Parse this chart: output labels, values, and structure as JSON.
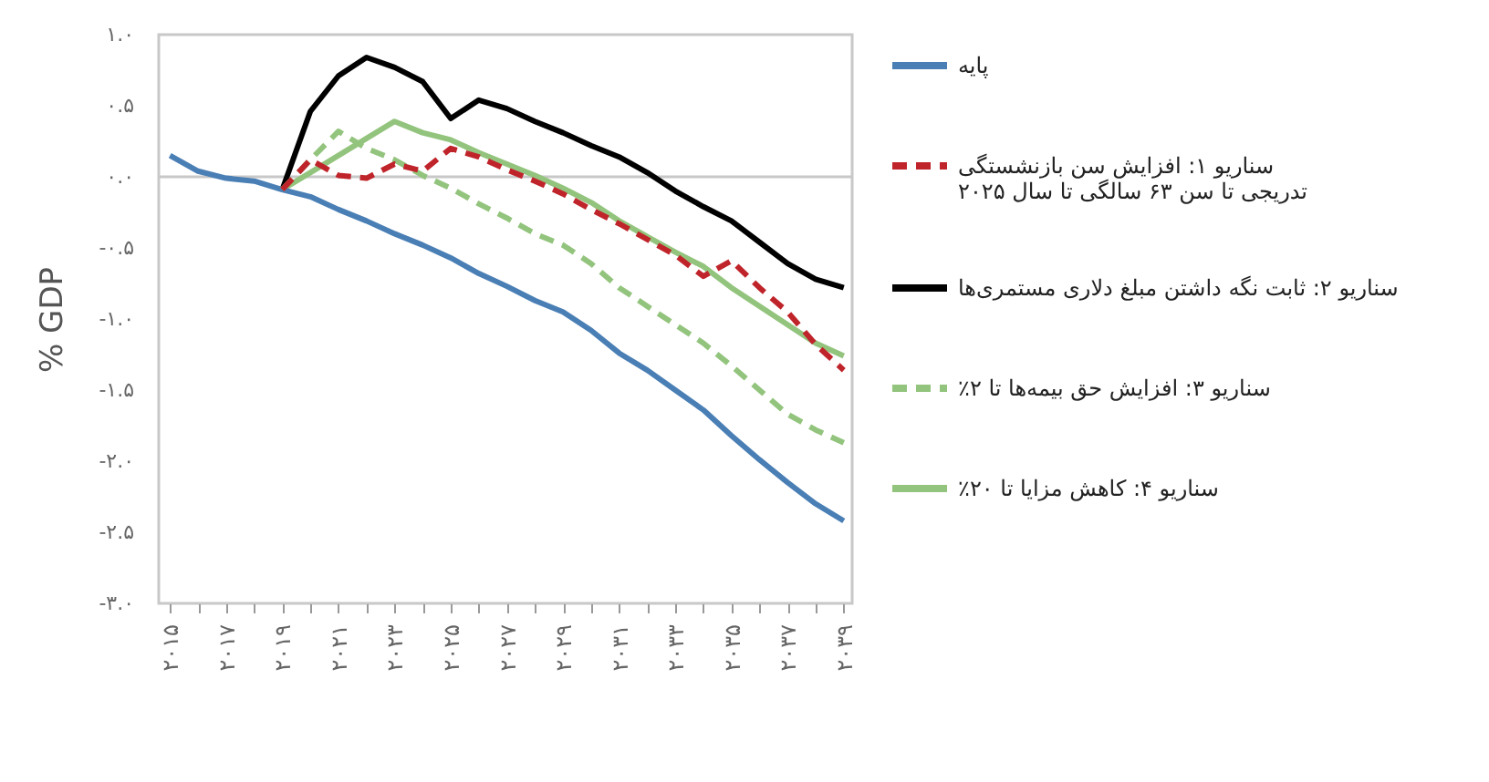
{
  "chart_data": {
    "type": "line",
    "ylabel": "% GDP",
    "legend": "right",
    "grid": false,
    "line_style": "solid",
    "marker": "none",
    "x": [
      2015,
      2016,
      2017,
      2018,
      2019,
      2020,
      2021,
      2022,
      2023,
      2024,
      2025,
      2026,
      2027,
      2028,
      2029,
      2030,
      2031,
      2032,
      2033,
      2034,
      2035,
      2036,
      2037,
      2038,
      2039
    ],
    "xlim": [
      2014.6,
      2039.3
    ],
    "xticks": [
      {
        "value": 2015,
        "label": "۲۰۱۵"
      },
      {
        "value": 2016,
        "label": null
      },
      {
        "value": 2017,
        "label": "۲۰۱۷"
      },
      {
        "value": 2018,
        "label": null
      },
      {
        "value": 2019,
        "label": "۲۰۱۹"
      },
      {
        "value": 2020,
        "label": null
      },
      {
        "value": 2021,
        "label": "۲۰۲۱"
      },
      {
        "value": 2022,
        "label": null
      },
      {
        "value": 2023,
        "label": "۲۰۲۳"
      },
      {
        "value": 2024,
        "label": null
      },
      {
        "value": 2025,
        "label": "۲۰۲۵"
      },
      {
        "value": 2026,
        "label": null
      },
      {
        "value": 2027,
        "label": "۲۰۲۷"
      },
      {
        "value": 2028,
        "label": null
      },
      {
        "value": 2029,
        "label": "۲۰۲۹"
      },
      {
        "value": 2030,
        "label": null
      },
      {
        "value": 2031,
        "label": "۲۰۳۱"
      },
      {
        "value": 2032,
        "label": null
      },
      {
        "value": 2033,
        "label": "۲۰۳۳"
      },
      {
        "value": 2034,
        "label": null
      },
      {
        "value": 2035,
        "label": "۲۰۳۵"
      },
      {
        "value": 2036,
        "label": null
      },
      {
        "value": 2037,
        "label": "۲۰۳۷"
      },
      {
        "value": 2038,
        "label": null
      },
      {
        "value": 2039,
        "label": "۲۰۳۹"
      }
    ],
    "ylim": [
      -3,
      1
    ],
    "yticks": [
      {
        "value": 1,
        "label": "۱.۰"
      },
      {
        "value": 0.5,
        "label": "۰.۵"
      },
      {
        "value": 0,
        "label": "۰.۰"
      },
      {
        "value": -0.5,
        "label": "-۰.۵"
      },
      {
        "value": -1,
        "label": "-۱.۰"
      },
      {
        "value": -1.5,
        "label": "-۱.۵"
      },
      {
        "value": -2,
        "label": "-۲.۰"
      },
      {
        "value": -2.5,
        "label": "-۲.۵"
      },
      {
        "value": -3,
        "label": "-۳.۰"
      }
    ],
    "ref_lines": [
      {
        "axis": "y",
        "value": 0,
        "color": "#c8c8c8"
      }
    ],
    "series": [
      {
        "name": "پایه",
        "color": "#4a7fb5",
        "values": [
          0.15,
          0.04,
          -0.01,
          -0.03,
          -0.09,
          -0.14,
          -0.23,
          -0.31,
          -0.4,
          -0.48,
          -0.57,
          -0.68,
          -0.77,
          -0.87,
          -0.95,
          -1.08,
          -1.24,
          -1.36,
          -1.5,
          -1.64,
          -1.82,
          -1.99,
          -2.15,
          -2.3,
          -2.42
        ]
      },
      {
        "name": "سناریو ۱: افزایش سن بازنشستگی تدریجی تا سن ۶۳ سالگی تا سال ۲۰۲۵",
        "color": "#c0242b",
        "line_style": "dashed",
        "values": [
          null,
          null,
          null,
          null,
          -0.09,
          0.12,
          0.01,
          -0.01,
          0.09,
          0.04,
          0.2,
          0.14,
          0.05,
          -0.03,
          -0.12,
          -0.23,
          -0.33,
          -0.44,
          -0.55,
          -0.7,
          -0.59,
          -0.78,
          -0.95,
          -1.18,
          -1.36
        ]
      },
      {
        "name": "سناریو ۲: ثابت نگه داشتن مبلغ دلاری مستمری‌ها",
        "color": "#000000",
        "values": [
          null,
          null,
          null,
          null,
          -0.09,
          0.46,
          0.71,
          0.84,
          0.77,
          0.67,
          0.41,
          0.54,
          0.48,
          0.39,
          0.31,
          0.22,
          0.14,
          0.03,
          -0.1,
          -0.21,
          -0.31,
          -0.46,
          -0.61,
          -0.72,
          -0.78
        ]
      },
      {
        "name": "سناریو ۳: افزایش حق بیمه‌ها تا ۲٪",
        "color": "#93c47d",
        "line_style": "dashed",
        "values": [
          null,
          null,
          null,
          null,
          -0.09,
          0.12,
          0.32,
          0.2,
          0.12,
          0.01,
          -0.08,
          -0.19,
          -0.29,
          -0.4,
          -0.48,
          -0.61,
          -0.78,
          -0.91,
          -1.04,
          -1.17,
          -1.33,
          -1.5,
          -1.67,
          -1.78,
          -1.87
        ]
      },
      {
        "name": "سناریو ۴: کاهش مزایا تا ۲۰٪",
        "color": "#93c47d",
        "values": [
          null,
          null,
          null,
          null,
          -0.09,
          0.03,
          0.15,
          0.27,
          0.39,
          0.31,
          0.26,
          0.17,
          0.09,
          0.01,
          -0.08,
          -0.18,
          -0.31,
          -0.42,
          -0.53,
          -0.63,
          -0.78,
          -0.91,
          -1.04,
          -1.17,
          -1.26
        ]
      }
    ]
  }
}
